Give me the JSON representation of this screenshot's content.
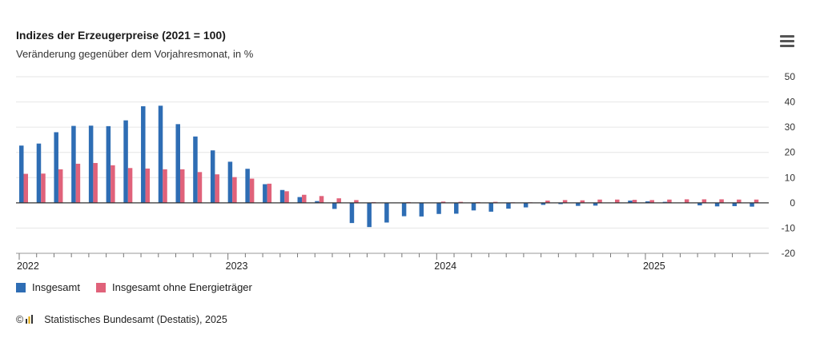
{
  "colors": {
    "series_1": "#2e6db4",
    "series_2": "#e0627a",
    "grid": "#e6e6e6",
    "axis": "#333333"
  },
  "menu_icon": "hamburger-menu-icon",
  "credit": "Statistisches Bundesamt (Destatis), 2025",
  "credit_icons": [
    "copyright-icon",
    "destatis-logo-icon"
  ],
  "chart_data": {
    "type": "bar",
    "title": "Indizes der Erzeugerpreise (2021 = 100)",
    "subtitle": "Veränderung gegenüber dem Vorjahresmonat, in %",
    "xlabel": "",
    "ylabel": "",
    "ylim": [
      -20,
      50
    ],
    "yticks": [
      -20,
      -10,
      0,
      10,
      20,
      30,
      40,
      50
    ],
    "y_axis_side": "right",
    "grid": true,
    "legend_position": "bottom-left",
    "x_tick_labels": [
      "2022",
      "2023",
      "2024",
      "2025"
    ],
    "categories": [
      "2022-01",
      "2022-02",
      "2022-03",
      "2022-04",
      "2022-05",
      "2022-06",
      "2022-07",
      "2022-08",
      "2022-09",
      "2022-10",
      "2022-11",
      "2022-12",
      "2023-01",
      "2023-02",
      "2023-03",
      "2023-04",
      "2023-05",
      "2023-06",
      "2023-07",
      "2023-08",
      "2023-09",
      "2023-10",
      "2023-11",
      "2023-12",
      "2024-01",
      "2024-02",
      "2024-03",
      "2024-04",
      "2024-05",
      "2024-06",
      "2024-07",
      "2024-08",
      "2024-09",
      "2024-10",
      "2024-11",
      "2024-12",
      "2025-01",
      "2025-02",
      "2025-03",
      "2025-04",
      "2025-05",
      "2025-06",
      "2025-07"
    ],
    "series": [
      {
        "name": "Insgesamt",
        "values": [
          22.7,
          23.5,
          28.0,
          30.5,
          30.6,
          30.4,
          32.7,
          38.3,
          38.5,
          31.2,
          26.3,
          20.8,
          16.3,
          13.5,
          7.4,
          5.1,
          2.3,
          0.7,
          -2.4,
          -8.0,
          -9.6,
          -7.8,
          -5.3,
          -5.4,
          -4.4,
          -4.3,
          -3.0,
          -3.5,
          -2.3,
          -1.8,
          -0.8,
          -0.5,
          -1.2,
          -1.1,
          0.1,
          0.9,
          0.6,
          0.4,
          0.1,
          -1.0,
          -1.4,
          -1.3,
          -1.5
        ]
      },
      {
        "name": "Insgesamt ohne Energieträger",
        "values": [
          11.5,
          11.6,
          13.3,
          15.5,
          15.8,
          14.9,
          13.8,
          13.6,
          13.3,
          13.3,
          12.2,
          11.3,
          10.2,
          9.6,
          7.6,
          4.6,
          3.2,
          2.7,
          1.8,
          1.1,
          0.3,
          0.1,
          0.3,
          0.1,
          0.5,
          0.4,
          0.3,
          0.4,
          0.2,
          0.2,
          0.9,
          1.1,
          1.0,
          1.3,
          1.3,
          1.2,
          1.1,
          1.3,
          1.4,
          1.4,
          1.4,
          1.3,
          1.3
        ]
      }
    ]
  }
}
